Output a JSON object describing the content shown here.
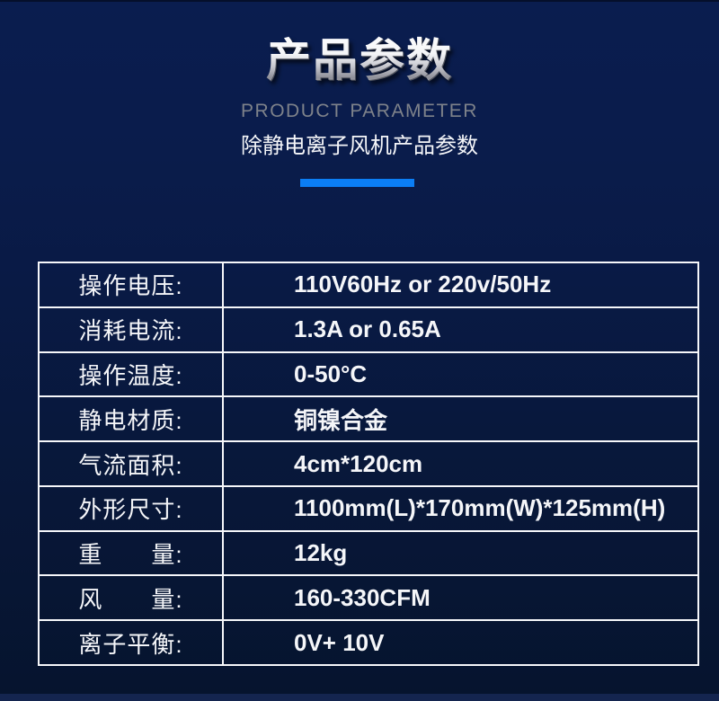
{
  "page": {
    "background_top": "#0a1d4f",
    "background_bottom": "#06142e",
    "accent_blue": "#0b7ef5",
    "border_white": "#f6f7fa",
    "subtitle_gray": "#7e828a"
  },
  "header": {
    "title": "产品参数",
    "subtitle_en": "PRODUCT PARAMETER",
    "subtitle_cn": "除静电离子风机产品参数"
  },
  "table": {
    "rows": [
      {
        "label": "操作电压:",
        "value": "110V60Hz or 220v/50Hz"
      },
      {
        "label": "消耗电流:",
        "value": "1.3A or 0.65A"
      },
      {
        "label": "操作温度:",
        "value": "0-50°C"
      },
      {
        "label": "静电材质:",
        "value": "铜镍合金"
      },
      {
        "label": "气流面积:",
        "value": "4cm*120cm"
      },
      {
        "label": "外形尺寸:",
        "value": "1100mm(L)*170mm(W)*125mm(H)"
      },
      {
        "label": "重　　量:",
        "value": "12kg"
      },
      {
        "label": "风　　量:",
        "value": "160-330CFM"
      },
      {
        "label": "离子平衡:",
        "value": "0V+ 10V"
      }
    ]
  }
}
